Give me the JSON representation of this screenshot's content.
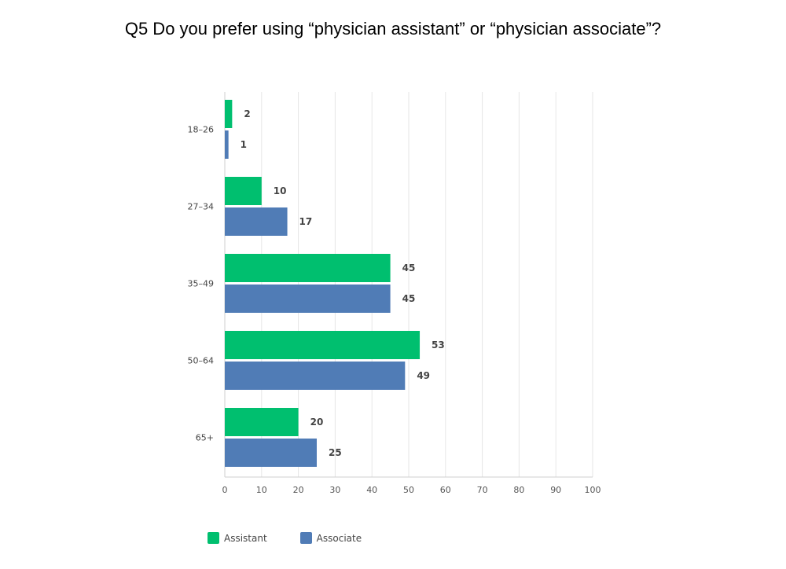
{
  "title": "Q5 Do you prefer using “physician assistant” or “physician associate”?",
  "colors": {
    "Assistant": "#00bf6f",
    "Associate": "#507cb6"
  },
  "chart_data": {
    "type": "bar",
    "orientation": "horizontal",
    "title": "Q5 Do you prefer using “physician assistant” or “physician associate”?",
    "categories": [
      "18–26",
      "27–34",
      "35–49",
      "50–64",
      "65+"
    ],
    "series": [
      {
        "name": "Assistant",
        "values": [
          2,
          10,
          45,
          53,
          20
        ]
      },
      {
        "name": "Associate",
        "values": [
          1,
          17,
          45,
          49,
          25
        ]
      }
    ],
    "xlim": [
      0,
      100
    ],
    "ticks": [
      0,
      10,
      20,
      30,
      40,
      50,
      60,
      70,
      80,
      90,
      100
    ],
    "grid": true,
    "legend": "bottom-left"
  }
}
